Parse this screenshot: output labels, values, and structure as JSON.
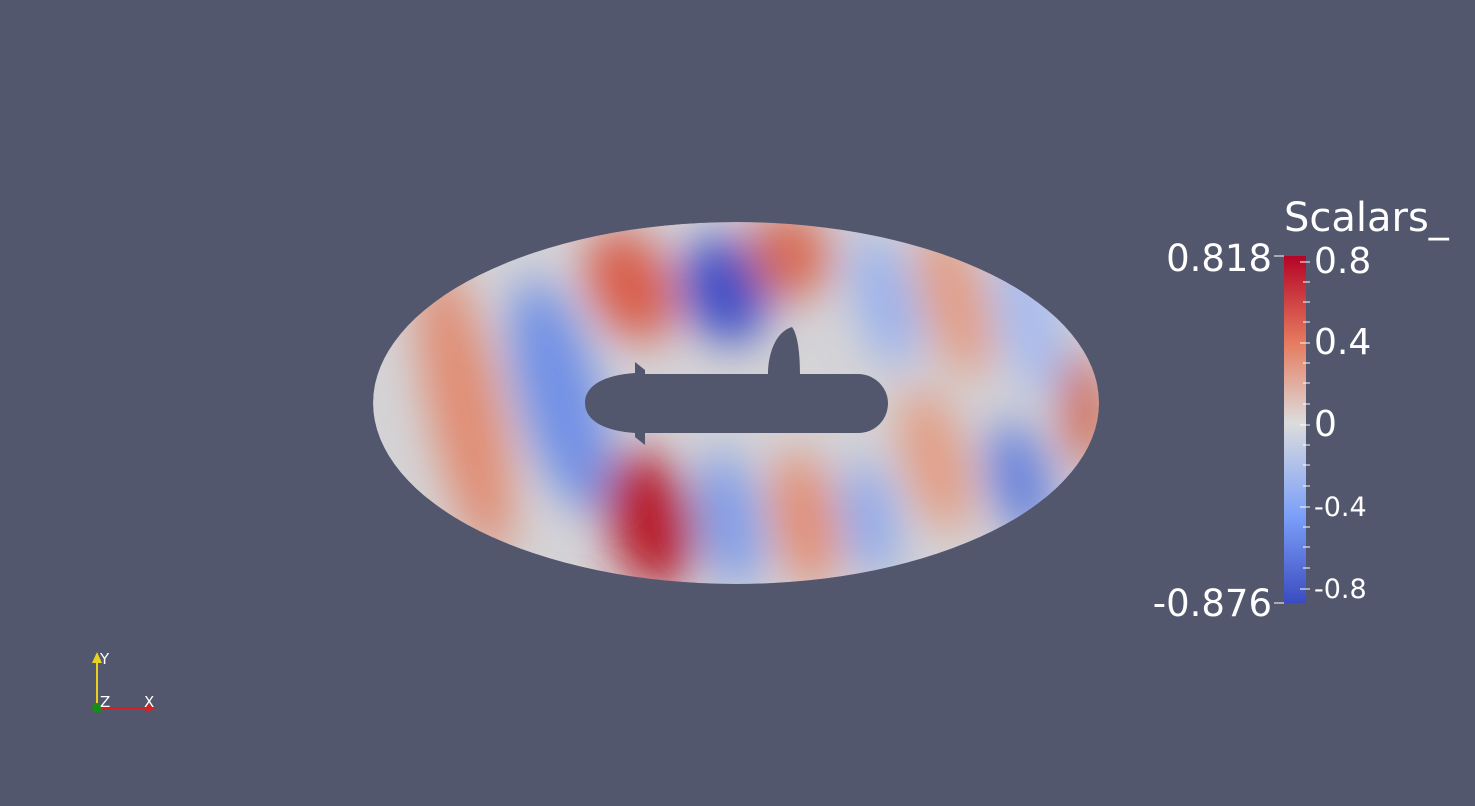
{
  "scalar_bar": {
    "title": "Scalars_",
    "range_max": "0.818",
    "range_min": "-0.876",
    "ticks": [
      "0.8",
      "0.4",
      "0",
      "-0.4",
      "-0.8"
    ],
    "colors": {
      "max": "#b40426",
      "high": "#e67b5f",
      "mid": "#dcdcdc",
      "low": "#7b9ff9",
      "min": "#3b4cc0"
    }
  },
  "scene": {
    "background": "#52576e",
    "object": "ellipse-domain-with-submarine-hole"
  },
  "axes": {
    "x_label": "X",
    "y_label": "Y",
    "z_label": "Z"
  }
}
